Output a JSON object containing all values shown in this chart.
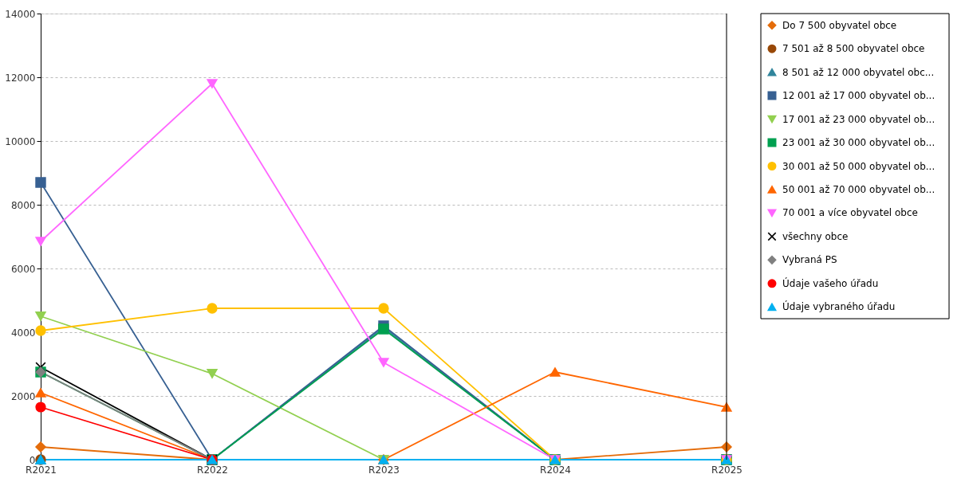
{
  "chart_data": {
    "type": "line",
    "categories": [
      "R2021",
      "R2022",
      "R2023",
      "R2024",
      "R2025"
    ],
    "series": [
      {
        "name": "Do 7 500 obyvatel obce",
        "color": "#e46c0a",
        "marker": "diamond",
        "values": [
          400,
          0,
          0,
          0,
          400
        ]
      },
      {
        "name": "7 501 až 8 500 obyvatel obce",
        "color": "#984807",
        "marker": "circle",
        "values": [
          0,
          null,
          null,
          null,
          null
        ]
      },
      {
        "name": "8 501 až 12 000 obyvatel obc...",
        "color": "#31859c",
        "marker": "triangle",
        "values": [
          0,
          0,
          4150,
          0,
          0
        ]
      },
      {
        "name": "12 001 až 17 000 obyvatel ob...",
        "color": "#376092",
        "marker": "square",
        "values": [
          8700,
          0,
          4200,
          0,
          0
        ]
      },
      {
        "name": "17 001 až 23 000 obyvatel ob...",
        "color": "#92d050",
        "marker": "triangle-down",
        "values": [
          4500,
          2700,
          0,
          0,
          0
        ]
      },
      {
        "name": "23 001 až 30 000 obyvatel ob...",
        "color": "#00a050",
        "marker": "square",
        "values": [
          2750,
          0,
          4100,
          0,
          0
        ]
      },
      {
        "name": "30 001 až 50 000 obyvatel ob...",
        "color": "#ffc000",
        "marker": "circle",
        "values": [
          4050,
          4750,
          4750,
          0,
          0
        ]
      },
      {
        "name": "50 001 až 70 000 obyvatel ob...",
        "color": "#ff6600",
        "marker": "triangle",
        "values": [
          2100,
          0,
          0,
          2750,
          1650
        ]
      },
      {
        "name": "70 001 a více obyvatel obce",
        "color": "#ff66ff",
        "marker": "triangle-down",
        "values": [
          6850,
          11800,
          3050,
          0,
          0
        ]
      },
      {
        "name": "všechny obce",
        "color": "#000000",
        "marker": "cross",
        "values": [
          2900,
          0,
          null,
          null,
          null
        ]
      },
      {
        "name": "Vybraná PS",
        "color": "#808080",
        "marker": "diamond",
        "values": [
          2750,
          0,
          null,
          null,
          null
        ]
      },
      {
        "name": "Údaje vašeho úřadu",
        "color": "#ff0000",
        "marker": "circle",
        "values": [
          1650,
          0,
          null,
          null,
          null
        ]
      },
      {
        "name": "Údaje vybraného úřadu",
        "color": "#00b0f0",
        "marker": "triangle",
        "values": [
          0,
          0,
          0,
          0,
          0
        ]
      }
    ],
    "ylim": [
      0,
      14000
    ],
    "yticks": [
      0,
      2000,
      4000,
      6000,
      8000,
      10000,
      12000,
      14000
    ],
    "grid": "y",
    "legend": "right"
  }
}
